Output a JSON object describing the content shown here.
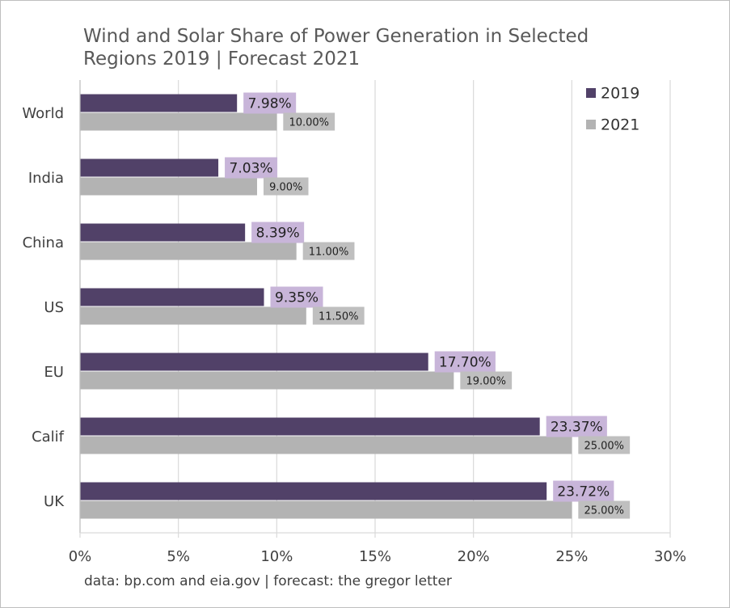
{
  "chart_data": {
    "type": "bar",
    "orientation": "horizontal",
    "title_lines": [
      "Wind and Solar Share of Power Generation in Selected",
      "Regions 2019 | Forecast 2021"
    ],
    "source_note": "data: bp.com and eia.gov | forecast: the gregor letter",
    "categories": [
      "World",
      "India",
      "China",
      "US",
      "EU",
      "Calif",
      "UK"
    ],
    "series": [
      {
        "name": "2019",
        "color": "#514168",
        "label_bg": "#c8b5d9",
        "values": [
          7.98,
          7.03,
          8.39,
          9.35,
          17.7,
          23.37,
          23.72
        ],
        "labels": [
          "7.98%",
          "7.03%",
          "8.39%",
          "9.35%",
          "17.70%",
          "23.37%",
          "23.72%"
        ]
      },
      {
        "name": "2021",
        "color": "#b3b3b3",
        "label_bg": "#bfbfbf",
        "values": [
          10.0,
          9.0,
          11.0,
          11.5,
          19.0,
          25.0,
          25.0
        ],
        "labels": [
          "10.00%",
          "9.00%",
          "11.00%",
          "11.50%",
          "19.00%",
          "25.00%",
          "25.00%"
        ]
      }
    ],
    "xlim": [
      0,
      30
    ],
    "xticks": [
      0,
      5,
      10,
      15,
      20,
      25,
      30
    ],
    "xtick_labels": [
      "0%",
      "5%",
      "10%",
      "15%",
      "20%",
      "25%",
      "30%"
    ],
    "grid": "vertical",
    "legend_position": "top-right"
  }
}
